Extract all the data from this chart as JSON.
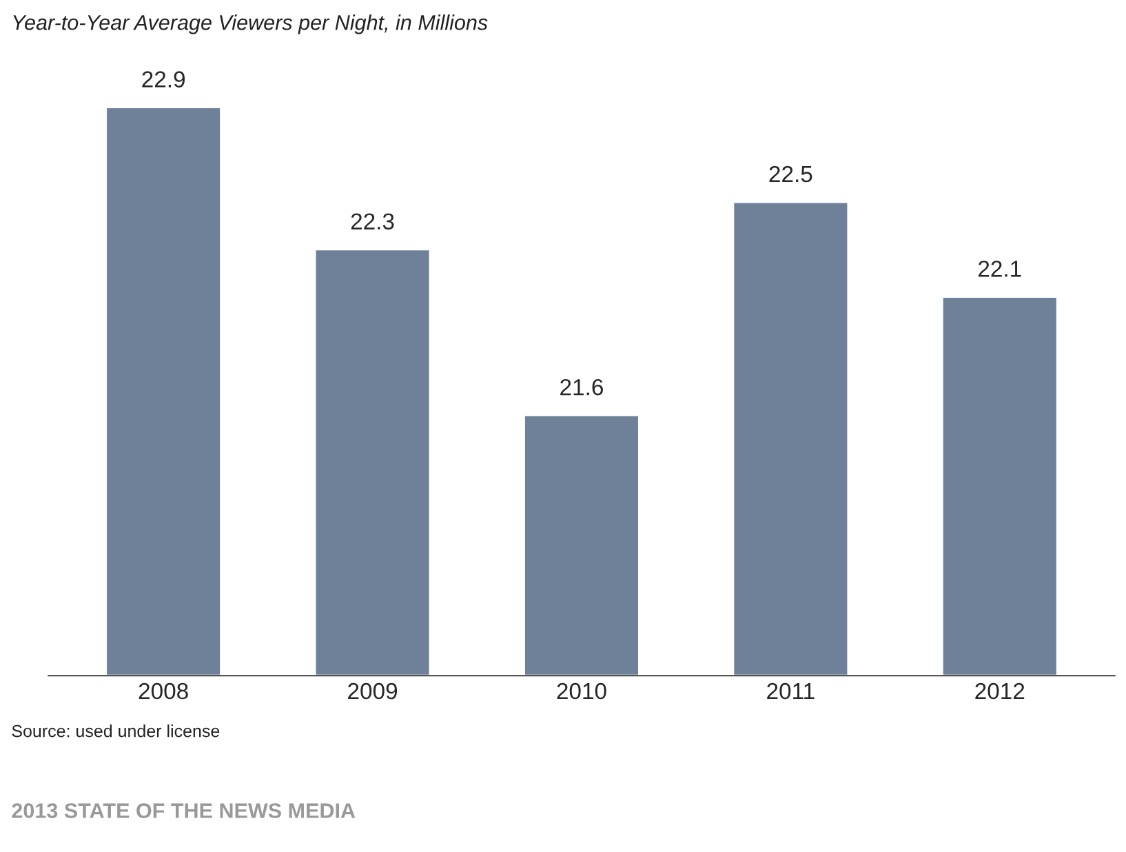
{
  "chart_data": {
    "type": "bar",
    "title": "Year-to-Year Average Viewers per Night, in Millions",
    "categories": [
      "2008",
      "2009",
      "2010",
      "2011",
      "2012"
    ],
    "values": [
      22.9,
      22.3,
      21.6,
      22.5,
      22.1
    ],
    "color": "#6e8199",
    "ylim": [
      20.5,
      22.9
    ],
    "tick_labels": "x",
    "grid": false,
    "data_labels": true,
    "annotations": [
      "Source: used under license",
      "2013 STATE OF THE NEWS MEDIA"
    ]
  }
}
